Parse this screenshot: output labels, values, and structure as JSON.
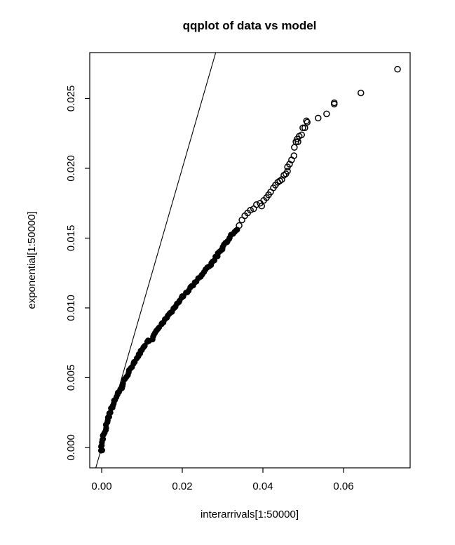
{
  "colors": {
    "foreground": "#000000",
    "background": "#ffffff",
    "points": "#000000",
    "reference_line": "#000000"
  },
  "chart_data": {
    "type": "scatter",
    "title": "qqplot of data vs model",
    "xlabel": "interarrivals[1:50000]",
    "ylabel": "exponential[1:50000]",
    "xlim": [
      -0.00296,
      0.07652
    ],
    "ylim": [
      -0.00146,
      0.02829
    ],
    "x_ticks": [
      0.0,
      0.02,
      0.04,
      0.06
    ],
    "x_tick_labels": [
      "0.00",
      "0.02",
      "0.04",
      "0.06"
    ],
    "y_ticks": [
      0.0,
      0.005,
      0.01,
      0.015,
      0.02,
      0.025
    ],
    "y_tick_labels": [
      "0.000",
      "0.005",
      "0.010",
      "0.015",
      "0.020",
      "0.025"
    ],
    "grid": false,
    "legend": "none",
    "reference_line": {
      "type": "identity",
      "slope": 1,
      "intercept": 0
    },
    "series": [
      {
        "name": "lower-quantile-points-dense-overlapping",
        "marker": "filled-circle",
        "color": "#000000",
        "render": "densify-along-path",
        "points": [
          [
            0.0,
            -0.0003
          ],
          [
            0.0,
            0.0002
          ],
          [
            0.0004,
            0.0008
          ],
          [
            0.0009,
            0.0013
          ],
          [
            0.0014,
            0.0019
          ],
          [
            0.0019,
            0.0024
          ],
          [
            0.0026,
            0.0029
          ],
          [
            0.0031,
            0.0033
          ],
          [
            0.0037,
            0.0036
          ],
          [
            0.0044,
            0.004
          ],
          [
            0.0049,
            0.0043
          ],
          [
            0.0056,
            0.0048
          ],
          [
            0.0061,
            0.0051
          ],
          [
            0.0068,
            0.0055
          ],
          [
            0.0075,
            0.0058
          ],
          [
            0.0083,
            0.0062
          ],
          [
            0.009,
            0.0065
          ],
          [
            0.0098,
            0.0069
          ],
          [
            0.0104,
            0.0072
          ],
          [
            0.0112,
            0.0075
          ],
          [
            0.0118,
            0.0077
          ],
          [
            0.0125,
            0.0078
          ],
          [
            0.0133,
            0.0082
          ],
          [
            0.014,
            0.0085
          ],
          [
            0.0151,
            0.0089
          ],
          [
            0.0165,
            0.0094
          ],
          [
            0.0178,
            0.0099
          ],
          [
            0.0191,
            0.0104
          ],
          [
            0.0204,
            0.0109
          ],
          [
            0.0217,
            0.0113
          ],
          [
            0.0231,
            0.0118
          ],
          [
            0.0244,
            0.0122
          ],
          [
            0.0257,
            0.0127
          ],
          [
            0.027,
            0.0131
          ],
          [
            0.0283,
            0.0136
          ],
          [
            0.0296,
            0.0141
          ],
          [
            0.0303,
            0.0145
          ],
          [
            0.031,
            0.0147
          ],
          [
            0.0322,
            0.0152
          ],
          [
            0.033,
            0.0154
          ],
          [
            0.0336,
            0.0156
          ]
        ]
      },
      {
        "name": "upper-tail-quantile-points",
        "marker": "open-circle",
        "color": "#000000",
        "render": "points",
        "points": [
          [
            0.0341,
            0.0159
          ],
          [
            0.0348,
            0.0163
          ],
          [
            0.0355,
            0.0166
          ],
          [
            0.0362,
            0.0168
          ],
          [
            0.0369,
            0.017
          ],
          [
            0.0377,
            0.0171
          ],
          [
            0.0384,
            0.0174
          ],
          [
            0.0393,
            0.0175
          ],
          [
            0.0397,
            0.0173
          ],
          [
            0.0402,
            0.0177
          ],
          [
            0.0409,
            0.0179
          ],
          [
            0.0414,
            0.0181
          ],
          [
            0.0419,
            0.0183
          ],
          [
            0.0426,
            0.0186
          ],
          [
            0.0431,
            0.0188
          ],
          [
            0.0437,
            0.019
          ],
          [
            0.0442,
            0.0191
          ],
          [
            0.0447,
            0.0192
          ],
          [
            0.0452,
            0.0195
          ],
          [
            0.0457,
            0.0196
          ],
          [
            0.0461,
            0.0198
          ],
          [
            0.0461,
            0.0201
          ],
          [
            0.0466,
            0.0203
          ],
          [
            0.0471,
            0.0206
          ],
          [
            0.0477,
            0.0209
          ],
          [
            0.0478,
            0.0215
          ],
          [
            0.0482,
            0.0219
          ],
          [
            0.0485,
            0.0221
          ],
          [
            0.0487,
            0.0219
          ],
          [
            0.049,
            0.0223
          ],
          [
            0.0496,
            0.0224
          ],
          [
            0.0499,
            0.0229
          ],
          [
            0.0504,
            0.0229
          ],
          [
            0.0508,
            0.0234
          ],
          [
            0.051,
            0.0233
          ],
          [
            0.0537,
            0.0236
          ],
          [
            0.0558,
            0.0239
          ],
          [
            0.0577,
            0.0246
          ],
          [
            0.0577,
            0.0247
          ],
          [
            0.0643,
            0.0254
          ],
          [
            0.0734,
            0.0271
          ]
        ]
      }
    ]
  }
}
